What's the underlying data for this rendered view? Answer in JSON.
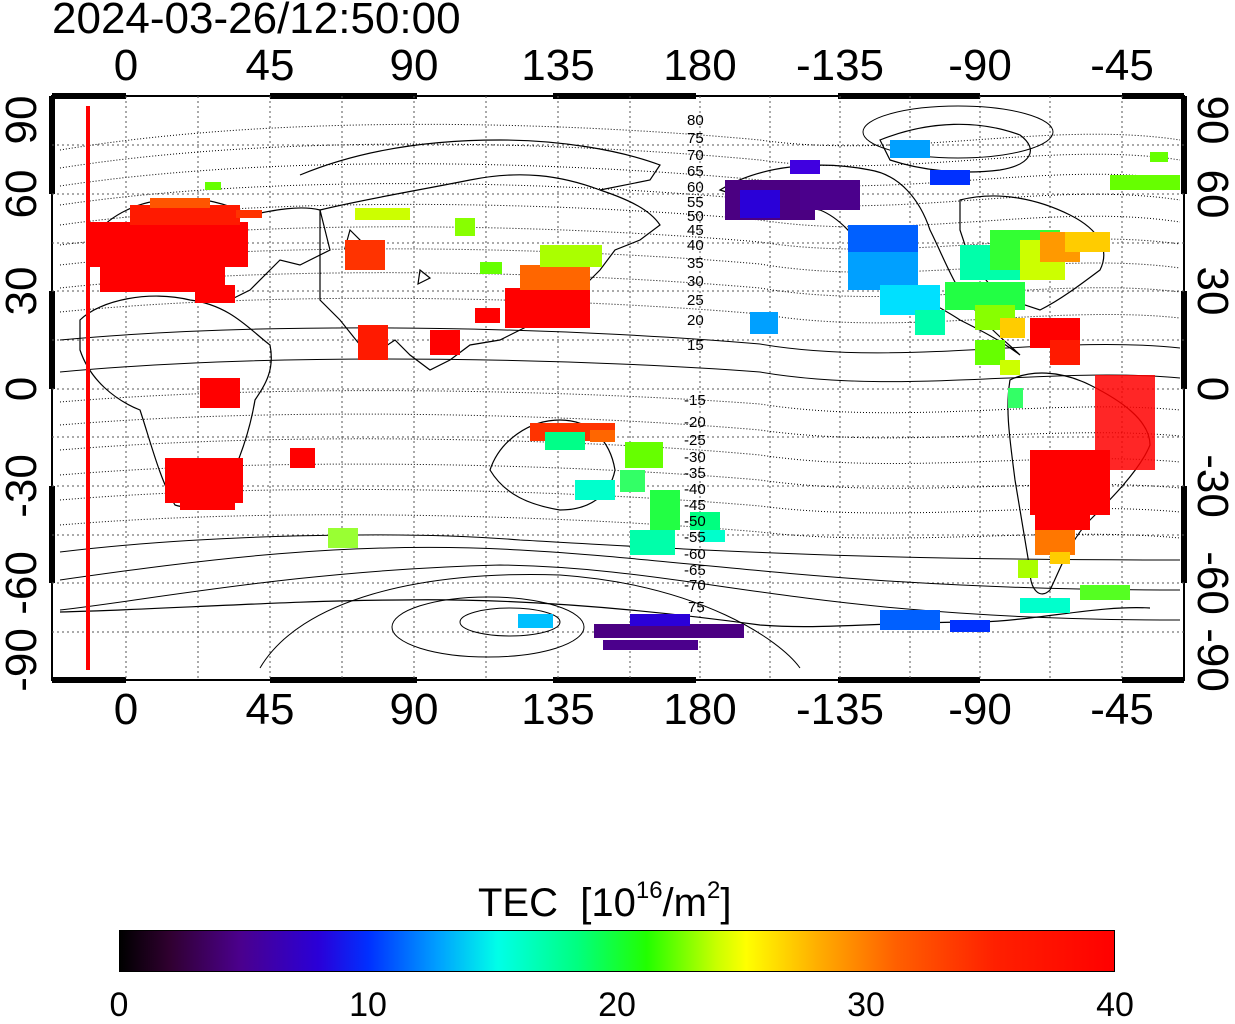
{
  "title": "2024-03-26/12:50:00",
  "map": {
    "lon_ticks": [
      "0",
      "45",
      "90",
      "135",
      "180",
      "-135",
      "-90",
      "-45"
    ],
    "lat_ticks_left": [
      "90",
      "60",
      "30",
      "0",
      "-30",
      "-60",
      "-90"
    ],
    "lat_ticks_right": [
      "90",
      "60",
      "30",
      "0",
      "-30",
      "-60",
      "-90"
    ],
    "contour_labels_north": [
      "80",
      "75",
      "70",
      "65",
      "60",
      "55",
      "50",
      "45",
      "40",
      "35",
      "30",
      "25",
      "20",
      "15"
    ],
    "contour_labels_south": [
      "-15",
      "-20",
      "-25",
      "-30",
      "-35",
      "-40",
      "-45",
      "-50",
      "-55",
      "-60",
      "-65",
      "-70",
      "75"
    ],
    "colors": {
      "terminator": "#ff0000",
      "high_tec": "#ff0000",
      "low_tec": "#4b0082"
    }
  },
  "colorbar": {
    "title": "TEC",
    "unit_base": "[10",
    "unit_exp": "16",
    "unit_mid": "/m",
    "unit_exp2": "2",
    "unit_end": "]",
    "ticks": [
      "0",
      "10",
      "20",
      "30",
      "40"
    ],
    "min": 0,
    "max": 40
  }
}
